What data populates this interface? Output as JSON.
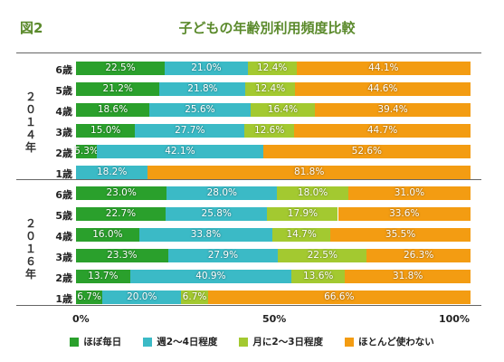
{
  "header": {
    "fig_label": "図2",
    "title": "子どもの年齢別利用頻度比較"
  },
  "chart_data": {
    "type": "bar",
    "orientation": "horizontal-stacked-percent",
    "xlim": [
      0,
      100
    ],
    "xticks": [
      "0%",
      "50%",
      "100%"
    ],
    "series": [
      {
        "name": "ほぼ毎日",
        "color": "#2aa02c"
      },
      {
        "name": "週2〜4日程度",
        "color": "#3bbac6"
      },
      {
        "name": "月に2〜3日程度",
        "color": "#a3c930"
      },
      {
        "name": "ほとんど使わない",
        "color": "#f39c12"
      }
    ],
    "groups": [
      {
        "year_label": "２０１４年",
        "rows": [
          {
            "category": "6歳",
            "values": [
              22.5,
              21.0,
              12.4,
              44.1
            ],
            "labels": [
              "22.5%",
              "21.0%",
              "12.4%",
              "44.1%"
            ]
          },
          {
            "category": "5歳",
            "values": [
              21.2,
              21.8,
              12.4,
              44.6
            ],
            "labels": [
              "21.2%",
              "21.8%",
              "12.4%",
              "44.6%"
            ]
          },
          {
            "category": "4歳",
            "values": [
              18.6,
              25.6,
              16.4,
              39.4
            ],
            "labels": [
              "18.6%",
              "25.6%",
              "16.4%",
              "39.4%"
            ]
          },
          {
            "category": "3歳",
            "values": [
              15.0,
              27.7,
              12.6,
              44.7
            ],
            "labels": [
              "15.0%",
              "27.7%",
              "12.6%",
              "44.7%"
            ]
          },
          {
            "category": "2歳",
            "values": [
              5.3,
              42.1,
              0,
              52.6
            ],
            "labels": [
              "5.3%",
              "42.1%",
              "",
              "52.6%"
            ]
          },
          {
            "category": "1歳",
            "values": [
              0,
              18.2,
              0,
              81.8
            ],
            "labels": [
              "",
              "18.2%",
              "",
              "81.8%"
            ]
          }
        ]
      },
      {
        "year_label": "２０１６年",
        "rows": [
          {
            "category": "6歳",
            "values": [
              23.0,
              28.0,
              18.0,
              31.0
            ],
            "labels": [
              "23.0%",
              "28.0%",
              "18.0%",
              "31.0%"
            ]
          },
          {
            "category": "5歳",
            "values": [
              22.7,
              25.8,
              17.9,
              33.6
            ],
            "labels": [
              "22.7%",
              "25.8%",
              "17.9%",
              "33.6%"
            ]
          },
          {
            "category": "4歳",
            "values": [
              16.0,
              33.8,
              14.7,
              35.5
            ],
            "labels": [
              "16.0%",
              "33.8%",
              "14.7%",
              "35.5%"
            ]
          },
          {
            "category": "3歳",
            "values": [
              23.3,
              27.9,
              22.5,
              26.3
            ],
            "labels": [
              "23.3%",
              "27.9%",
              "22.5%",
              "26.3%"
            ]
          },
          {
            "category": "2歳",
            "values": [
              13.7,
              40.9,
              13.6,
              31.8
            ],
            "labels": [
              "13.7%",
              "40.9%",
              "13.6%",
              "31.8%"
            ]
          },
          {
            "category": "1歳",
            "values": [
              6.7,
              20.0,
              6.7,
              66.6
            ],
            "labels": [
              "6.7%",
              "20.0%",
              "6.7%",
              "66.6%"
            ]
          }
        ]
      }
    ]
  }
}
